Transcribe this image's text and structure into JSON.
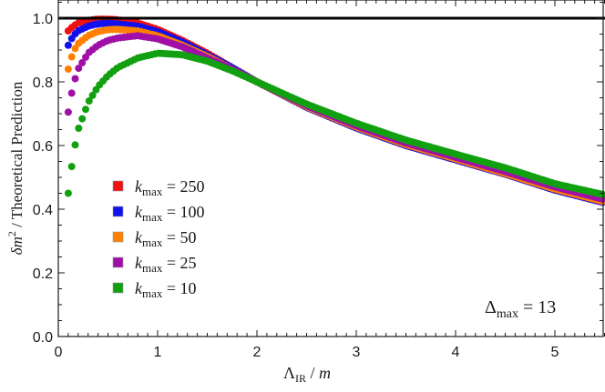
{
  "chart_data": {
    "type": "scatter",
    "title": "",
    "xlabel": "Λ_IR / m",
    "ylabel": "δm² / Theoretical Prediction",
    "xlim": [
      0,
      5.5
    ],
    "ylim": [
      0.0,
      1.05
    ],
    "x_ticks": [
      "0",
      "1",
      "2",
      "3",
      "4",
      "5"
    ],
    "y_ticks": [
      "0.0",
      "0.2",
      "0.4",
      "0.6",
      "0.8",
      "1.0"
    ],
    "grid": false,
    "reference_line": {
      "y": 1.0,
      "color": "#000000"
    },
    "annotation": {
      "text_main": "Δ",
      "text_sub": "max",
      "text_rest": " = 13",
      "x": 4.3,
      "y": 0.05
    },
    "legend": {
      "position": "lower-left",
      "entries": [
        "k_max = 250",
        "k_max = 100",
        "k_max = 50",
        "k_max = 25",
        "k_max = 10"
      ]
    },
    "x": [
      0.1,
      0.15,
      0.2,
      0.3,
      0.4,
      0.5,
      0.6,
      0.8,
      1.0,
      1.25,
      1.5,
      1.75,
      2.0,
      2.5,
      3.0,
      3.5,
      4.0,
      4.5,
      5.0,
      5.5
    ],
    "series": [
      {
        "name": "k_max = 250",
        "label_var": "k",
        "label_sub": "max",
        "label_val": " = 250",
        "color": "#ee1111",
        "values": [
          0.96,
          0.975,
          0.985,
          0.993,
          0.997,
          0.997,
          0.995,
          0.985,
          0.965,
          0.93,
          0.89,
          0.845,
          0.8,
          0.72,
          0.655,
          0.6,
          0.555,
          0.51,
          0.46,
          0.42
        ]
      },
      {
        "name": "k_max = 100",
        "label_var": "k",
        "label_sub": "max",
        "label_val": " = 100",
        "color": "#1111ee",
        "values": [
          0.915,
          0.945,
          0.96,
          0.975,
          0.982,
          0.984,
          0.982,
          0.975,
          0.958,
          0.925,
          0.885,
          0.845,
          0.8,
          0.72,
          0.655,
          0.6,
          0.555,
          0.51,
          0.46,
          0.42
        ]
      },
      {
        "name": "k_max = 50",
        "label_var": "k",
        "label_sub": "max",
        "label_val": " = 50",
        "color": "#ff8000",
        "values": [
          0.84,
          0.895,
          0.92,
          0.945,
          0.958,
          0.964,
          0.965,
          0.96,
          0.945,
          0.915,
          0.88,
          0.84,
          0.8,
          0.722,
          0.658,
          0.603,
          0.558,
          0.512,
          0.463,
          0.423
        ]
      },
      {
        "name": "k_max = 25",
        "label_var": "k",
        "label_sub": "max",
        "label_val": " = 25",
        "color": "#a010a8",
        "values": [
          0.705,
          0.79,
          0.84,
          0.89,
          0.915,
          0.93,
          0.938,
          0.945,
          0.935,
          0.91,
          0.875,
          0.84,
          0.8,
          0.725,
          0.662,
          0.608,
          0.563,
          0.518,
          0.47,
          0.43
        ]
      },
      {
        "name": "k_max = 10",
        "label_var": "k",
        "label_sub": "max",
        "label_val": " = 10",
        "color": "#10a010",
        "values": [
          0.45,
          0.57,
          0.65,
          0.735,
          0.785,
          0.82,
          0.845,
          0.875,
          0.89,
          0.885,
          0.865,
          0.835,
          0.8,
          0.73,
          0.67,
          0.617,
          0.573,
          0.53,
          0.48,
          0.445
        ]
      }
    ]
  }
}
